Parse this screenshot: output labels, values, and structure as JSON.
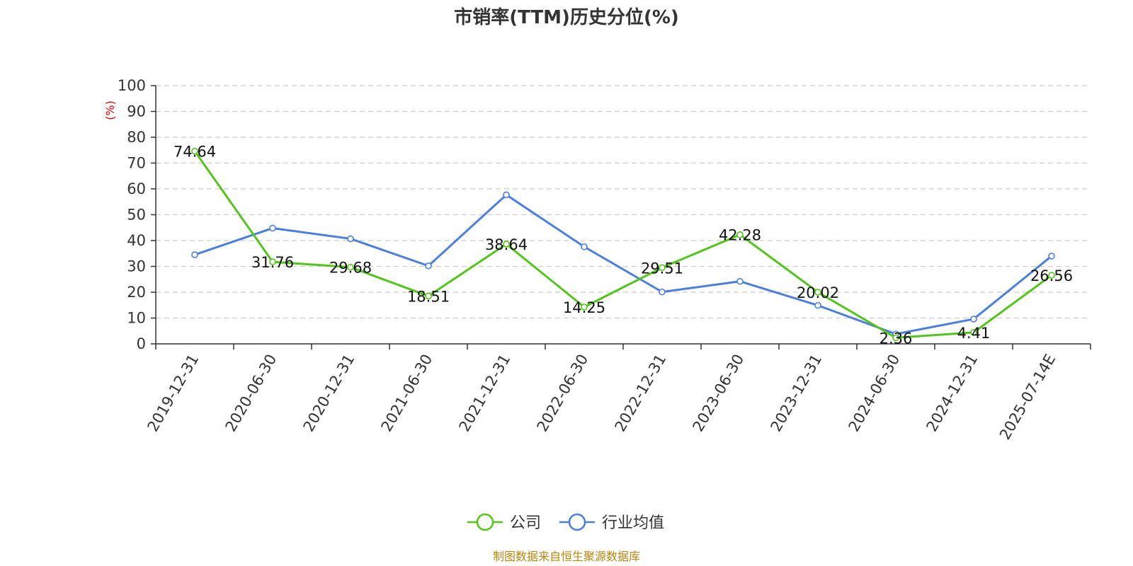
{
  "chart_data": {
    "type": "line",
    "title": "市销率(TTM)历史分位(%)",
    "ylabel": "(%)",
    "ylim": [
      0,
      100
    ],
    "yticks": [
      0,
      10,
      20,
      30,
      40,
      50,
      60,
      70,
      80,
      90,
      100
    ],
    "grid": true,
    "legend_position": "bottom-center",
    "categories": [
      "2019-12-31",
      "2020-06-30",
      "2020-12-31",
      "2021-06-30",
      "2021-12-31",
      "2022-06-30",
      "2022-12-31",
      "2023-06-30",
      "2023-12-31",
      "2024-06-30",
      "2024-12-31",
      "2025-07-14E"
    ],
    "series": [
      {
        "name": "公司",
        "color": "#52c41a",
        "labeled": true,
        "values": [
          74.64,
          31.76,
          29.68,
          18.51,
          38.64,
          14.25,
          29.51,
          42.28,
          20.02,
          2.36,
          4.41,
          26.56
        ]
      },
      {
        "name": "行业均值",
        "color": "#4a7fdc",
        "labeled": false,
        "values": [
          34.5,
          44.8,
          40.7,
          30.2,
          57.7,
          37.6,
          20.1,
          24.2,
          14.9,
          3.8,
          9.6,
          34.0
        ]
      }
    ]
  },
  "source_note": "制图数据来自恒生聚源数据库"
}
